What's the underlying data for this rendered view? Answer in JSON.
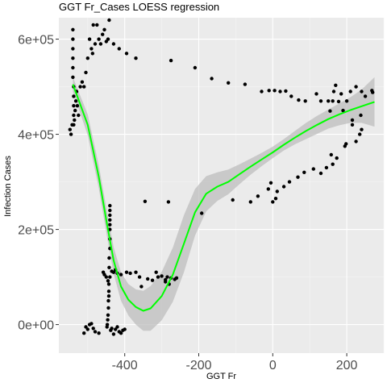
{
  "chart_data": {
    "type": "scatter",
    "title": "GGT Fr_Cases LOESS regression",
    "xlabel": "GGT Fr",
    "ylabel": "Infection Cases",
    "xlim": [
      -578,
      300
    ],
    "ylim": [
      -60000,
      645000
    ],
    "x_ticks": [
      -400,
      -200,
      0,
      200
    ],
    "x_tick_labels": [
      "-400",
      "-200",
      "0",
      "200"
    ],
    "y_ticks": [
      0,
      200000,
      400000,
      600000
    ],
    "y_tick_labels": [
      "0e+00",
      "2e+05",
      "4e+05",
      "6e+05"
    ],
    "grid": true,
    "legend": "none",
    "colors": {
      "panel": "#ebebeb",
      "grid_major": "#ffffff",
      "grid_minor": "#f5f5f5",
      "points": "#000000",
      "fit_line": "#00ff00",
      "ribbon": "#bebebe"
    },
    "points": [
      [
        -540,
        620000
      ],
      [
        -540,
        600000
      ],
      [
        -540,
        580000
      ],
      [
        -540,
        560000
      ],
      [
        -540,
        540000
      ],
      [
        -540,
        520000
      ],
      [
        -538,
        500000
      ],
      [
        -538,
        480000
      ],
      [
        -538,
        460000
      ],
      [
        -538,
        440000
      ],
      [
        -538,
        420000
      ],
      [
        -536,
        430000
      ],
      [
        -534,
        450000
      ],
      [
        -532,
        470000
      ],
      [
        -530,
        490000
      ],
      [
        -528,
        460000
      ],
      [
        -525,
        440000
      ],
      [
        -520,
        500000
      ],
      [
        -515,
        510000
      ],
      [
        -510,
        500000
      ],
      [
        -505,
        530000
      ],
      [
        -500,
        560000
      ],
      [
        -495,
        600000
      ],
      [
        -490,
        580000
      ],
      [
        -487,
        570000
      ],
      [
        -485,
        630000
      ],
      [
        -480,
        590000
      ],
      [
        -475,
        630000
      ],
      [
        -470,
        600000
      ],
      [
        -465,
        590000
      ],
      [
        -460,
        610000
      ],
      [
        -455,
        620000
      ],
      [
        -450,
        595000
      ],
      [
        -445,
        600000
      ],
      [
        -442,
        640000
      ],
      [
        -430,
        590000
      ],
      [
        -415,
        580000
      ],
      [
        -395,
        570000
      ],
      [
        -370,
        560000
      ],
      [
        -275,
        555000
      ],
      [
        -210,
        540000
      ],
      [
        -165,
        517000
      ],
      [
        -120,
        508000
      ],
      [
        -75,
        505000
      ],
      [
        -30,
        490000
      ],
      [
        -10,
        492000
      ],
      [
        5,
        492000
      ],
      [
        20,
        490000
      ],
      [
        35,
        491000
      ],
      [
        50,
        480000
      ],
      [
        70,
        472000
      ],
      [
        88,
        470000
      ],
      [
        118,
        485000
      ],
      [
        130,
        470000
      ],
      [
        150,
        470000
      ],
      [
        155,
        449000
      ],
      [
        162,
        470000
      ],
      [
        165,
        490000
      ],
      [
        170,
        503000
      ],
      [
        178,
        469000
      ],
      [
        185,
        485000
      ],
      [
        190,
        450000
      ],
      [
        200,
        470000
      ],
      [
        210,
        490000
      ],
      [
        225,
        500000
      ],
      [
        240,
        490000
      ],
      [
        250,
        480000
      ],
      [
        268,
        492000
      ],
      [
        270,
        488000
      ],
      [
        215,
        430000
      ],
      [
        215,
        420000
      ],
      [
        235,
        400000
      ],
      [
        238,
        440000
      ],
      [
        240,
        410000
      ],
      [
        225,
        385000
      ],
      [
        198,
        380000
      ],
      [
        195,
        375000
      ],
      [
        173,
        350000
      ],
      [
        162,
        337000
      ],
      [
        158,
        357000
      ],
      [
        145,
        330000
      ],
      [
        130,
        318000
      ],
      [
        110,
        327000
      ],
      [
        85,
        320000
      ],
      [
        68,
        310000
      ],
      [
        45,
        300000
      ],
      [
        30,
        290000
      ],
      [
        12,
        280000
      ],
      [
        8,
        265000
      ],
      [
        0,
        258000
      ],
      [
        -5,
        298000
      ],
      [
        -12,
        285000
      ],
      [
        -40,
        270000
      ],
      [
        -60,
        258000
      ],
      [
        -108,
        262000
      ],
      [
        -192,
        234000
      ],
      [
        -260,
        98000
      ],
      [
        -265,
        95000
      ],
      [
        -275,
        98000
      ],
      [
        -280,
        85000
      ],
      [
        -285,
        100000
      ],
      [
        -290,
        94000
      ],
      [
        -300,
        102000
      ],
      [
        -310,
        100000
      ],
      [
        -315,
        110000
      ],
      [
        -325,
        93000
      ],
      [
        -338,
        96000
      ],
      [
        -355,
        80000
      ],
      [
        -360,
        100000
      ],
      [
        -370,
        110000
      ],
      [
        -385,
        108000
      ],
      [
        -395,
        110000
      ],
      [
        -410,
        105000
      ],
      [
        -420,
        108000
      ],
      [
        -430,
        110000
      ],
      [
        -425,
        115000
      ],
      [
        -435,
        112000
      ],
      [
        -440,
        100000
      ],
      [
        -445,
        92000
      ],
      [
        -450,
        100000
      ],
      [
        -455,
        105000
      ],
      [
        -458,
        110000
      ],
      [
        -440,
        250000
      ],
      [
        -440,
        240000
      ],
      [
        -440,
        230000
      ],
      [
        -440,
        220000
      ],
      [
        -440,
        210000
      ],
      [
        -440,
        200000
      ],
      [
        -440,
        180000
      ],
      [
        -440,
        160000
      ],
      [
        -442,
        140000
      ],
      [
        -442,
        120000
      ],
      [
        -443,
        85000
      ],
      [
        -443,
        70000
      ],
      [
        -443,
        60000
      ],
      [
        -444,
        50000
      ],
      [
        -444,
        35000
      ],
      [
        -445,
        20000
      ],
      [
        -446,
        10000
      ],
      [
        -447,
        0
      ],
      [
        -448,
        -5000
      ],
      [
        -420,
        -5000
      ],
      [
        -425,
        -10000
      ],
      [
        -430,
        -20000
      ],
      [
        -435,
        -8000
      ],
      [
        -438,
        -12000
      ],
      [
        -410,
        -18000
      ],
      [
        -405,
        -12000
      ],
      [
        -415,
        -15000
      ],
      [
        -400,
        -10000
      ],
      [
        -505,
        -5000
      ],
      [
        -500,
        -10000
      ],
      [
        -495,
        0
      ],
      [
        -490,
        2000
      ],
      [
        -485,
        -8000
      ],
      [
        -510,
        -18000
      ],
      [
        -480,
        -15000
      ],
      [
        -470,
        -18000
      ],
      [
        -345,
        259000
      ],
      [
        -282,
        258000
      ],
      [
        -290,
        90000
      ],
      [
        -545,
        400000
      ],
      [
        -542,
        420000
      ],
      [
        -548,
        410000
      ]
    ],
    "loess_fit": [
      [
        -540,
        505000
      ],
      [
        -500,
        420000
      ],
      [
        -470,
        310000
      ],
      [
        -450,
        220000
      ],
      [
        -430,
        135000
      ],
      [
        -410,
        80000
      ],
      [
        -390,
        52000
      ],
      [
        -370,
        37000
      ],
      [
        -350,
        29000
      ],
      [
        -330,
        34000
      ],
      [
        -300,
        60000
      ],
      [
        -270,
        105000
      ],
      [
        -240,
        170000
      ],
      [
        -210,
        236000
      ],
      [
        -180,
        275000
      ],
      [
        -150,
        290000
      ],
      [
        -120,
        300000
      ],
      [
        -90,
        316000
      ],
      [
        -60,
        332000
      ],
      [
        -30,
        347000
      ],
      [
        0,
        362000
      ],
      [
        30,
        378000
      ],
      [
        60,
        393000
      ],
      [
        90,
        407000
      ],
      [
        120,
        420000
      ],
      [
        150,
        432000
      ],
      [
        180,
        442000
      ],
      [
        210,
        451000
      ],
      [
        240,
        459000
      ],
      [
        275,
        468000
      ]
    ],
    "ribbon_upper": [
      [
        -540,
        520000
      ],
      [
        -500,
        442000
      ],
      [
        -470,
        334000
      ],
      [
        -450,
        246000
      ],
      [
        -430,
        163000
      ],
      [
        -410,
        110000
      ],
      [
        -390,
        85000
      ],
      [
        -370,
        74000
      ],
      [
        -350,
        71000
      ],
      [
        -330,
        81000
      ],
      [
        -300,
        111000
      ],
      [
        -270,
        162000
      ],
      [
        -240,
        230000
      ],
      [
        -210,
        285000
      ],
      [
        -180,
        312000
      ],
      [
        -150,
        320000
      ],
      [
        -120,
        326000
      ],
      [
        -90,
        337000
      ],
      [
        -60,
        349000
      ],
      [
        -30,
        361000
      ],
      [
        0,
        374000
      ],
      [
        30,
        390000
      ],
      [
        60,
        407000
      ],
      [
        90,
        424000
      ],
      [
        120,
        439000
      ],
      [
        150,
        452000
      ],
      [
        180,
        465000
      ],
      [
        210,
        478000
      ],
      [
        240,
        494000
      ],
      [
        275,
        520000
      ]
    ],
    "ribbon_lower": [
      [
        -540,
        490000
      ],
      [
        -500,
        398000
      ],
      [
        -470,
        286000
      ],
      [
        -450,
        194000
      ],
      [
        -430,
        107000
      ],
      [
        -410,
        50000
      ],
      [
        -390,
        19000
      ],
      [
        -370,
        0
      ],
      [
        -350,
        -13000
      ],
      [
        -330,
        -13000
      ],
      [
        -300,
        9000
      ],
      [
        -270,
        48000
      ],
      [
        -240,
        110000
      ],
      [
        -210,
        187000
      ],
      [
        -180,
        238000
      ],
      [
        -150,
        260000
      ],
      [
        -120,
        274000
      ],
      [
        -90,
        295000
      ],
      [
        -60,
        315000
      ],
      [
        -30,
        333000
      ],
      [
        0,
        350000
      ],
      [
        30,
        366000
      ],
      [
        60,
        379000
      ],
      [
        90,
        390000
      ],
      [
        120,
        401000
      ],
      [
        150,
        412000
      ],
      [
        180,
        419000
      ],
      [
        210,
        424000
      ],
      [
        240,
        424000
      ],
      [
        275,
        416000
      ]
    ]
  }
}
